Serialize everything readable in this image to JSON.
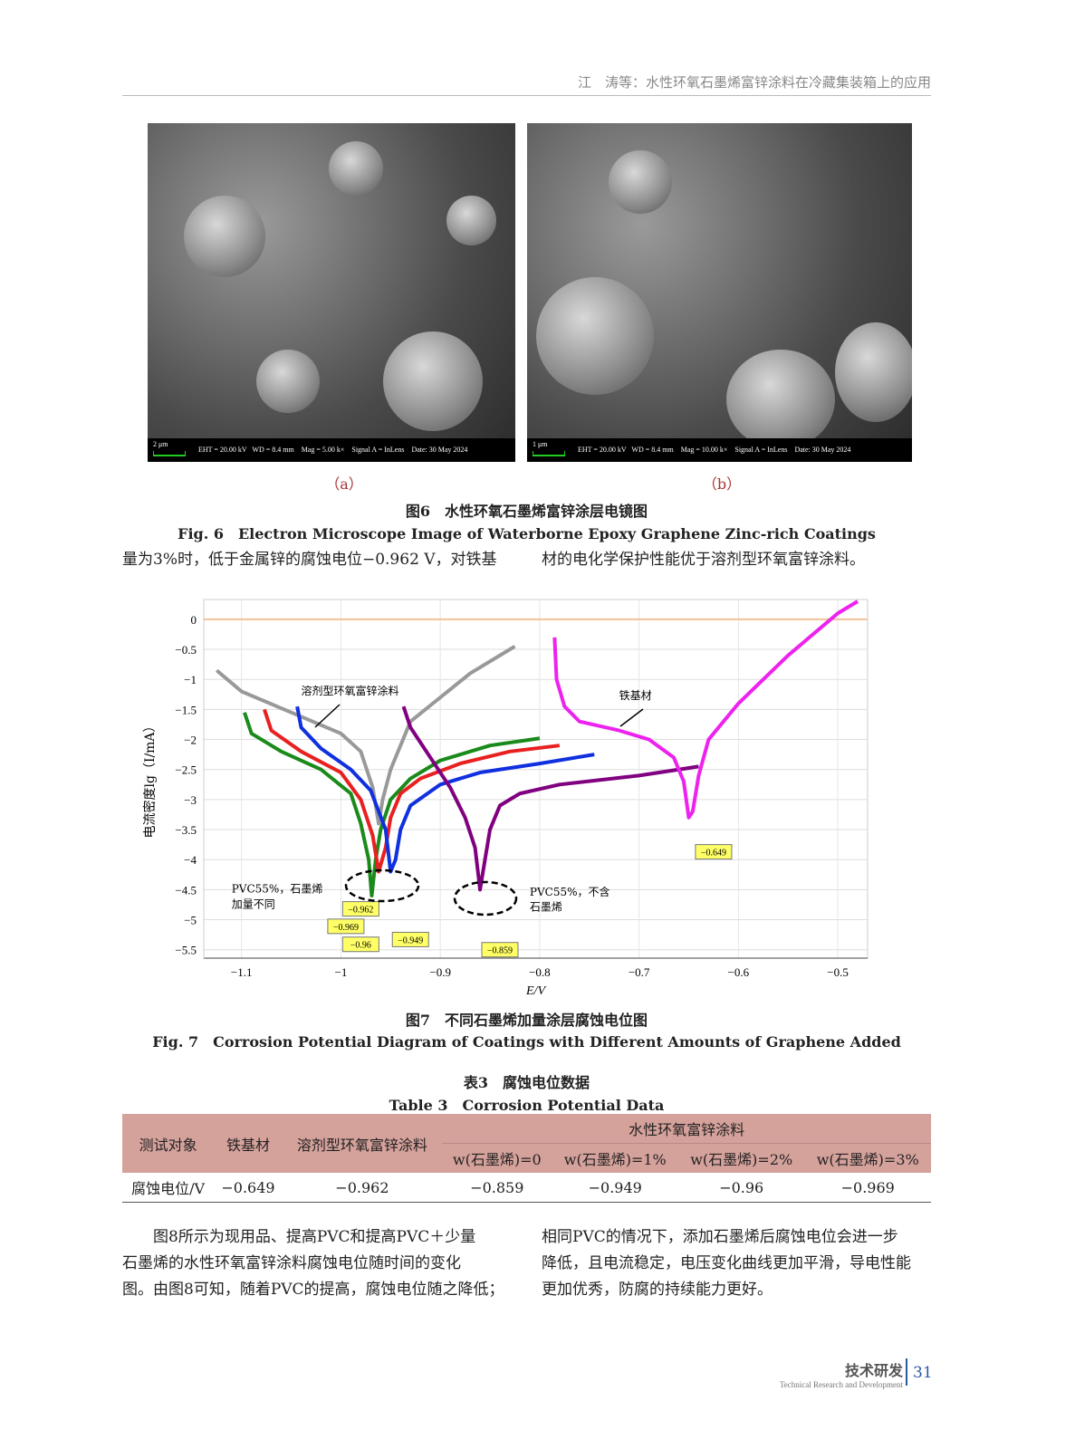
{
  "running_header": "江　涛等：水性环氧石墨烯富锌涂料在冷藏集装箱上的应用",
  "fig6": {
    "images": [
      {
        "label": "（a）",
        "scale": "2 μm",
        "info": "EHT = 20.00 kV   WD = 8.4 mm    Mag = 5.00 k×    Signal A = InLens    Date: 30 May 2024"
      },
      {
        "label": "（b）",
        "scale": "1 μm",
        "info": "EHT = 20.00 kV   WD = 8.4 mm    Mag = 10.00 k×    Signal A = InLens    Date: 30 May 2024"
      }
    ],
    "caption_cn": "图6　水性环氧石墨烯富锌涂层电镜图",
    "caption_en": "Fig. 6　Electron Microscope Image of Waterborne Epoxy Graphene Zinc-rich Coatings"
  },
  "para1_left": "量为3%时，低于金属锌的腐蚀电位−0.962 V，对铁基",
  "para1_right": "材的电化学保护性能优于溶剂型环氧富锌涂料。",
  "chart_data": {
    "type": "line",
    "xlabel": "E/V",
    "ylabel": "电流密度lg（I/mA）",
    "xlim": [
      -1.138,
      -0.47
    ],
    "ylim": [
      -5.64,
      0.33
    ],
    "xticks": [
      -1.1,
      -1,
      -0.9,
      -0.8,
      -0.7,
      -0.6,
      -0.5
    ],
    "xtick_labels": [
      "−1.1",
      "−1",
      "−0.9",
      "−0.8",
      "−0.7",
      "−0.6",
      "−0.5"
    ],
    "yticks": [
      0,
      -0.5,
      -1,
      -1.5,
      -2,
      -2.5,
      -3,
      -3.5,
      -4,
      -4.5,
      -5,
      -5.5
    ],
    "ytick_labels": [
      "0",
      "−0.5",
      "−1",
      "−1.5",
      "−2",
      "−2.5",
      "−3",
      "−3.5",
      "−4",
      "−4.5",
      "−5",
      "−5.5"
    ],
    "grid": true,
    "reference_line": {
      "y": 0,
      "color": "#f2c29a"
    },
    "series": [
      {
        "color": "#999999",
        "points": [
          [
            -1.125,
            -0.85
          ],
          [
            -1.1,
            -1.2
          ],
          [
            -1.05,
            -1.55
          ],
          [
            -1.0,
            -1.9
          ],
          [
            -0.98,
            -2.2
          ],
          [
            -0.968,
            -2.8
          ],
          [
            -0.962,
            -3.4
          ],
          [
            -0.958,
            -3.0
          ],
          [
            -0.95,
            -2.5
          ],
          [
            -0.93,
            -1.7
          ],
          [
            -0.9,
            -1.3
          ],
          [
            -0.87,
            -0.9
          ],
          [
            -0.825,
            -0.45
          ]
        ]
      },
      {
        "color": "#1a8a1a",
        "points": [
          [
            -1.097,
            -1.55
          ],
          [
            -1.09,
            -1.9
          ],
          [
            -1.06,
            -2.2
          ],
          [
            -1.02,
            -2.5
          ],
          [
            -0.99,
            -2.9
          ],
          [
            -0.98,
            -3.4
          ],
          [
            -0.972,
            -4.0
          ],
          [
            -0.969,
            -4.6
          ],
          [
            -0.965,
            -4.0
          ],
          [
            -0.96,
            -3.5
          ],
          [
            -0.95,
            -3.0
          ],
          [
            -0.93,
            -2.65
          ],
          [
            -0.9,
            -2.35
          ],
          [
            -0.85,
            -2.1
          ],
          [
            -0.8,
            -1.98
          ]
        ]
      },
      {
        "color": "#e82020",
        "points": [
          [
            -1.077,
            -1.5
          ],
          [
            -1.07,
            -1.85
          ],
          [
            -1.04,
            -2.2
          ],
          [
            -1.0,
            -2.55
          ],
          [
            -0.98,
            -3.0
          ],
          [
            -0.968,
            -3.6
          ],
          [
            -0.962,
            -4.2
          ],
          [
            -0.955,
            -3.8
          ],
          [
            -0.95,
            -3.3
          ],
          [
            -0.94,
            -2.9
          ],
          [
            -0.92,
            -2.65
          ],
          [
            -0.88,
            -2.4
          ],
          [
            -0.83,
            -2.2
          ],
          [
            -0.78,
            -2.1
          ]
        ]
      },
      {
        "color": "#1030e0",
        "points": [
          [
            -1.044,
            -1.45
          ],
          [
            -1.04,
            -1.8
          ],
          [
            -1.02,
            -2.15
          ],
          [
            -0.99,
            -2.5
          ],
          [
            -0.97,
            -2.85
          ],
          [
            -0.955,
            -3.5
          ],
          [
            -0.95,
            -4.2
          ],
          [
            -0.945,
            -4.0
          ],
          [
            -0.94,
            -3.5
          ],
          [
            -0.93,
            -3.1
          ],
          [
            -0.9,
            -2.75
          ],
          [
            -0.86,
            -2.55
          ],
          [
            -0.8,
            -2.4
          ],
          [
            -0.745,
            -2.25
          ]
        ]
      },
      {
        "color": "#800080",
        "points": [
          [
            -0.937,
            -1.45
          ],
          [
            -0.93,
            -1.8
          ],
          [
            -0.91,
            -2.3
          ],
          [
            -0.89,
            -2.8
          ],
          [
            -0.875,
            -3.3
          ],
          [
            -0.865,
            -3.8
          ],
          [
            -0.86,
            -4.5
          ],
          [
            -0.855,
            -4.0
          ],
          [
            -0.85,
            -3.5
          ],
          [
            -0.84,
            -3.1
          ],
          [
            -0.82,
            -2.9
          ],
          [
            -0.78,
            -2.75
          ],
          [
            -0.7,
            -2.6
          ],
          [
            -0.64,
            -2.45
          ]
        ]
      },
      {
        "color": "#ee22ee",
        "points": [
          [
            -0.785,
            -0.3
          ],
          [
            -0.783,
            -1.0
          ],
          [
            -0.775,
            -1.45
          ],
          [
            -0.76,
            -1.7
          ],
          [
            -0.72,
            -1.85
          ],
          [
            -0.69,
            -2.0
          ],
          [
            -0.665,
            -2.3
          ],
          [
            -0.655,
            -2.7
          ],
          [
            -0.65,
            -3.3
          ],
          [
            -0.646,
            -3.2
          ],
          [
            -0.64,
            -2.6
          ],
          [
            -0.63,
            -2.0
          ],
          [
            -0.6,
            -1.4
          ],
          [
            -0.55,
            -0.6
          ],
          [
            -0.5,
            0.1
          ],
          [
            -0.48,
            0.3
          ]
        ]
      }
    ],
    "value_labels": [
      {
        "text": "−0.962",
        "x": -0.98,
        "y": -4.82
      },
      {
        "text": "−0.969",
        "x": -0.995,
        "y": -5.11
      },
      {
        "text": "−0.96",
        "x": -0.98,
        "y": -5.41
      },
      {
        "text": "−0.949",
        "x": -0.93,
        "y": -5.33
      },
      {
        "text": "−0.859",
        "x": -0.84,
        "y": -5.5
      },
      {
        "text": "−0.649",
        "x": -0.625,
        "y": -3.87
      }
    ],
    "annotations": [
      {
        "text": "溶剂型环氧富锌涂料",
        "x": -1.04,
        "y": -1.25
      },
      {
        "text": "铁基材",
        "x": -0.72,
        "y": -1.33
      },
      {
        "text": "PVC55%，石墨烯",
        "x": -1.11,
        "y": -4.55
      },
      {
        "text": "加量不同",
        "x": -1.11,
        "y": -4.8
      },
      {
        "text": "PVC55%，不含",
        "x": -0.81,
        "y": -4.6
      },
      {
        "text": "石墨烯",
        "x": -0.81,
        "y": -4.85
      }
    ]
  },
  "fig7": {
    "caption_cn": "图7　不同石墨烯加量涂层腐蚀电位图",
    "caption_en": "Fig. 7　Corrosion Potential Diagram of Coatings with Different Amounts of Graphene Added"
  },
  "table3": {
    "caption_cn": "表3　腐蚀电位数据",
    "caption_en": "Table 3　Corrosion Potential Data",
    "header": [
      "测试对象",
      "铁基材",
      "溶剂型环氧富锌涂料",
      "水性环氧富锌涂料"
    ],
    "subheader": [
      "w(石墨烯)=0",
      "w(石墨烯)=1%",
      "w(石墨烯)=2%",
      "w(石墨烯)=3%"
    ],
    "row": [
      "腐蚀电位/V",
      "−0.649",
      "−0.962",
      "−0.859",
      "−0.949",
      "−0.96",
      "−0.969"
    ]
  },
  "para2_left": [
    "　　图8所示为现用品、提高PVC和提高PVC＋少量",
    "石墨烯的水性环氧富锌涂料腐蚀电位随时间的变化",
    "图。由图8可知，随着PVC的提高，腐蚀电位随之降低；"
  ],
  "para2_right": [
    "相同PVC的情况下，添加石墨烯后腐蚀电位会进一步",
    "降低，且电流稳定，电压变化曲线更加平滑，导电性能",
    "更加优秀，防腐的持续能力更好。"
  ],
  "footer": {
    "section_cn": "技术研发",
    "section_en": "Technical Research and Development",
    "page": "31"
  }
}
